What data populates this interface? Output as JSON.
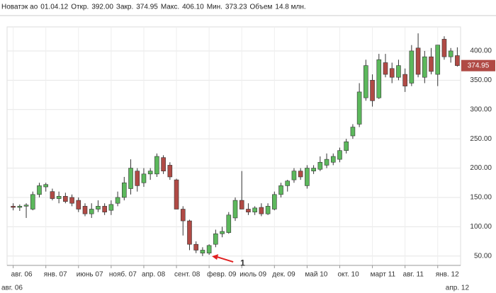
{
  "header": {
    "name": "Новатэк ао",
    "date": "01.04.12",
    "fields": [
      {
        "label": "Откр.",
        "value": "392.00"
      },
      {
        "label": "Закр.",
        "value": "374.95"
      },
      {
        "label": "Макс.",
        "value": "406.10"
      },
      {
        "label": "Мин.",
        "value": "373.23"
      },
      {
        "label": "Объем",
        "value": "14.8 млн."
      }
    ]
  },
  "chart_data": {
    "type": "candlestick",
    "categories": [
      "авг. 06",
      null,
      null,
      null,
      null,
      "янв. 07",
      null,
      null,
      null,
      null,
      "июнь 07",
      null,
      null,
      null,
      null,
      "нояб. 07",
      null,
      null,
      null,
      null,
      "апр. 08",
      null,
      null,
      null,
      null,
      "сент. 08",
      null,
      null,
      null,
      null,
      "февр. 09",
      null,
      null,
      null,
      null,
      "июль 09",
      null,
      null,
      null,
      null,
      "дек. 09",
      null,
      null,
      null,
      null,
      "май 10",
      null,
      null,
      null,
      null,
      "окт. 10",
      null,
      null,
      null,
      null,
      "март 11",
      null,
      null,
      null,
      null,
      "авг. 11",
      null,
      null,
      null,
      null,
      "янв. 12",
      null,
      null,
      null
    ],
    "open": [
      135,
      133,
      135,
      130,
      155,
      168,
      160,
      148,
      152,
      150,
      145,
      135,
      122,
      130,
      135,
      128,
      140,
      150,
      165,
      195,
      175,
      190,
      190,
      218,
      205,
      180,
      130,
      110,
      70,
      55,
      55,
      70,
      88,
      90,
      115,
      145,
      130,
      125,
      133,
      122,
      130,
      155,
      170,
      180,
      195,
      170,
      195,
      198,
      205,
      210,
      215,
      230,
      255,
      275,
      320,
      350,
      320,
      380,
      370,
      355,
      360,
      345,
      405,
      355,
      390,
      360,
      420,
      390,
      392
    ],
    "high": [
      140,
      138,
      140,
      160,
      175,
      175,
      165,
      160,
      158,
      155,
      150,
      140,
      140,
      145,
      140,
      145,
      160,
      185,
      215,
      200,
      200,
      200,
      225,
      222,
      210,
      182,
      135,
      112,
      75,
      65,
      70,
      95,
      100,
      125,
      150,
      195,
      140,
      135,
      140,
      140,
      160,
      175,
      180,
      200,
      200,
      205,
      205,
      220,
      225,
      225,
      235,
      250,
      275,
      345,
      385,
      360,
      395,
      395,
      380,
      385,
      370,
      410,
      430,
      400,
      405,
      410,
      425,
      405,
      406.1
    ],
    "low": [
      128,
      127,
      115,
      128,
      150,
      160,
      145,
      140,
      140,
      135,
      125,
      118,
      115,
      125,
      120,
      120,
      135,
      145,
      155,
      160,
      168,
      180,
      185,
      190,
      180,
      130,
      85,
      60,
      55,
      50,
      52,
      65,
      82,
      88,
      110,
      130,
      120,
      120,
      118,
      120,
      128,
      150,
      160,
      175,
      180,
      165,
      190,
      195,
      200,
      205,
      210,
      225,
      250,
      270,
      315,
      305,
      318,
      355,
      345,
      350,
      330,
      340,
      355,
      345,
      360,
      340,
      385,
      380,
      373.23
    ],
    "close": [
      133,
      135,
      137,
      155,
      170,
      172,
      148,
      152,
      143,
      140,
      130,
      122,
      130,
      135,
      125,
      138,
      150,
      175,
      200,
      170,
      190,
      195,
      220,
      195,
      185,
      130,
      110,
      70,
      60,
      60,
      68,
      88,
      92,
      120,
      145,
      130,
      125,
      132,
      122,
      135,
      155,
      170,
      178,
      195,
      185,
      200,
      200,
      210,
      215,
      220,
      230,
      245,
      270,
      330,
      375,
      315,
      385,
      360,
      355,
      375,
      340,
      400,
      360,
      390,
      365,
      410,
      390,
      400,
      374.95
    ],
    "up_color": "#5cb85c",
    "down_color": "#b04a45",
    "ylim": [
      34,
      441
    ],
    "yticks": [
      {
        "value": 50,
        "label": "50.00"
      },
      {
        "value": 100,
        "label": "100.00"
      },
      {
        "value": 150,
        "label": "150.00"
      },
      {
        "value": 200,
        "label": "200.00"
      },
      {
        "value": 250,
        "label": "250.00"
      },
      {
        "value": 300,
        "label": "300.00"
      },
      {
        "value": 350,
        "label": "350.00"
      },
      {
        "value": 400,
        "label": "400.00"
      }
    ],
    "grid": true,
    "range_start": "авг. 06",
    "range_end": "апр. 12",
    "annotation": {
      "text": "1",
      "index": 30
    }
  }
}
